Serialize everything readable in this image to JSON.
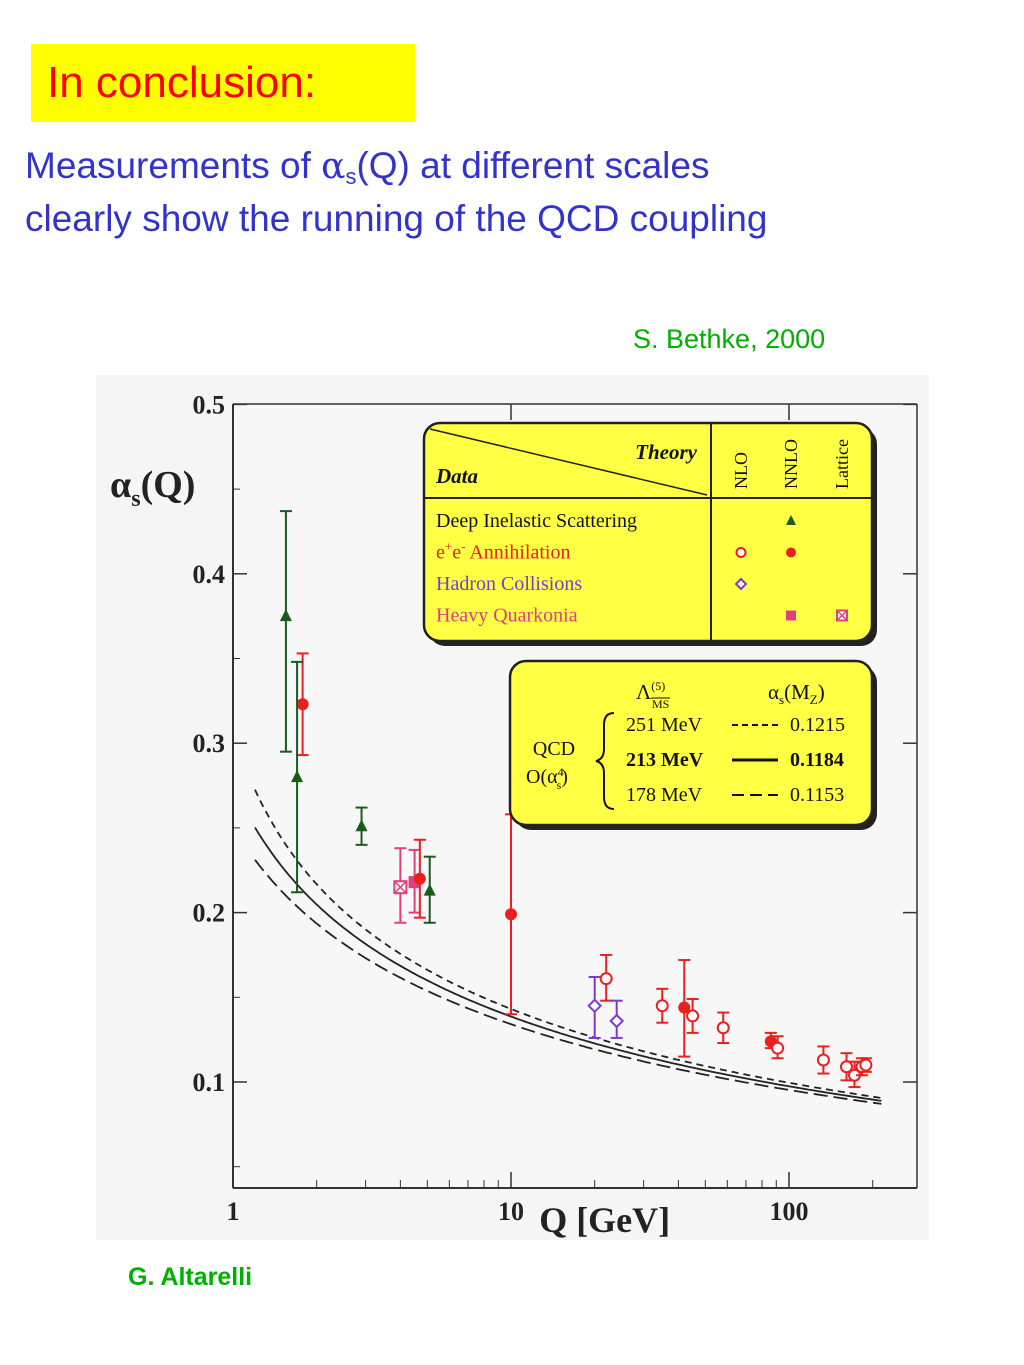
{
  "slide": {
    "title": "In conclusion:",
    "subtitle_line1_prefix": "Measurements of ",
    "subtitle_alpha": "α",
    "subtitle_sub": "s",
    "subtitle_line1_suffix": "(Q) at different scales",
    "subtitle_line2": "clearly show the running of the QCD coupling",
    "reference_top": "S. Bethke, 2000",
    "reference_bottom": "G. Altarelli"
  },
  "colors": {
    "title": "#ff0000",
    "title_bg": "#ffff00",
    "subtitle": "#3333cc",
    "reference": "#00b000",
    "dis": "#1a5a1a",
    "ee": "#e82020",
    "hadron": "#7a3cd0",
    "quarkonia": "#e0407a",
    "legend_bg": "#ffff44"
  },
  "chart_data": {
    "type": "scatter",
    "xscale": "log",
    "xlim": [
      1,
      230
    ],
    "ylim": [
      0.05,
      0.5
    ],
    "xlabel": "Q [GeV]",
    "ylabel_main": "α",
    "ylabel_sub": "s",
    "ylabel_tail": "(Q)",
    "x_ticks": [
      {
        "v": 1,
        "label": "1"
      },
      {
        "v": 10,
        "label": "10"
      },
      {
        "v": 100,
        "label": "100"
      }
    ],
    "y_ticks": [
      {
        "v": 0.1,
        "label": "0.1"
      },
      {
        "v": 0.2,
        "label": "0.2"
      },
      {
        "v": 0.3,
        "label": "0.3"
      },
      {
        "v": 0.4,
        "label": "0.4"
      },
      {
        "v": 0.5,
        "label": "0.5"
      }
    ],
    "legend_table": {
      "theory_label": "Theory",
      "data_label": "Data",
      "columns": [
        "NLO",
        "NNLO",
        "Lattice"
      ],
      "rows": [
        {
          "label": "Deep Inelastic Scattering",
          "series": "dis",
          "nlo": "",
          "nnlo": "filled-triangle",
          "lattice": ""
        },
        {
          "label_main": "e",
          "label_sup1": "+",
          "label_mid": "e",
          "label_sup2": "-",
          "label_tail": " Annihilation",
          "series": "ee",
          "nlo": "open-circle",
          "nnlo": "filled-circle",
          "lattice": ""
        },
        {
          "label": "Hadron Collisions",
          "series": "hadron",
          "nlo": "open-diamond",
          "nnlo": "",
          "lattice": ""
        },
        {
          "label": "Heavy Quarkonia",
          "series": "quarkonia",
          "nlo": "",
          "nnlo": "filled-square",
          "lattice": "crossed-square"
        }
      ]
    },
    "qcd_box": {
      "lambda_symbol": "Λ",
      "lambda_sup": "(5)",
      "lambda_sub": "MS",
      "alpha_header_main": "α",
      "alpha_header_sub": "s",
      "alpha_header_tail": "(M",
      "alpha_header_sub2": "Z",
      "alpha_header_close": ")",
      "qcd_label": "QCD",
      "order_label_main": "O(α",
      "order_label_sup": "4",
      "order_label_sub": "s",
      "order_label_close": ")",
      "rows": [
        {
          "lambda": "251 MeV",
          "alpha": "0.1215",
          "style": "dashed",
          "bold": false
        },
        {
          "lambda": "213 MeV",
          "alpha": "0.1184",
          "style": "solid",
          "bold": true
        },
        {
          "lambda": "178 MeV",
          "alpha": "0.1153",
          "style": "long-dashed",
          "bold": false
        }
      ]
    },
    "curves": [
      {
        "name": "251 MeV",
        "lambda": 0.251,
        "style": "dashed"
      },
      {
        "name": "213 MeV",
        "lambda": 0.213,
        "style": "solid"
      },
      {
        "name": "178 MeV",
        "lambda": 0.178,
        "style": "long-dashed"
      }
    ],
    "curve_x_range": [
      1.2,
      215
    ],
    "points": [
      {
        "series": "dis",
        "marker": "filled-triangle",
        "x": 1.55,
        "y": 0.375,
        "ylo": 0.295,
        "yhi": 0.437
      },
      {
        "series": "ee",
        "marker": "filled-circle",
        "x": 1.78,
        "y": 0.323,
        "ylo": 0.293,
        "yhi": 0.353
      },
      {
        "series": "dis",
        "marker": "filled-triangle",
        "x": 1.7,
        "y": 0.28,
        "ylo": 0.212,
        "yhi": 0.348
      },
      {
        "series": "dis",
        "marker": "filled-triangle",
        "x": 2.9,
        "y": 0.251,
        "ylo": 0.24,
        "yhi": 0.262
      },
      {
        "series": "quarkonia",
        "marker": "crossed-square",
        "x": 4.0,
        "y": 0.215,
        "ylo": 0.194,
        "yhi": 0.238
      },
      {
        "series": "quarkonia",
        "marker": "filled-square",
        "x": 4.5,
        "y": 0.218,
        "ylo": 0.2,
        "yhi": 0.237
      },
      {
        "series": "ee",
        "marker": "filled-circle",
        "x": 4.7,
        "y": 0.22,
        "ylo": 0.197,
        "yhi": 0.243
      },
      {
        "series": "dis",
        "marker": "filled-triangle",
        "x": 5.1,
        "y": 0.213,
        "ylo": 0.194,
        "yhi": 0.233
      },
      {
        "series": "ee",
        "marker": "filled-circle",
        "x": 10.0,
        "y": 0.199,
        "ylo": 0.14,
        "yhi": 0.258
      },
      {
        "series": "hadron",
        "marker": "open-diamond",
        "x": 20.0,
        "y": 0.145,
        "ylo": 0.126,
        "yhi": 0.162
      },
      {
        "series": "ee",
        "marker": "open-circle",
        "x": 22.0,
        "y": 0.161,
        "ylo": 0.148,
        "yhi": 0.175
      },
      {
        "series": "hadron",
        "marker": "open-diamond",
        "x": 24.0,
        "y": 0.136,
        "ylo": 0.126,
        "yhi": 0.148
      },
      {
        "series": "ee",
        "marker": "open-circle",
        "x": 35.0,
        "y": 0.145,
        "ylo": 0.135,
        "yhi": 0.155
      },
      {
        "series": "ee",
        "marker": "filled-circle",
        "x": 42.0,
        "y": 0.144,
        "ylo": 0.115,
        "yhi": 0.172
      },
      {
        "series": "ee",
        "marker": "open-circle",
        "x": 45.0,
        "y": 0.139,
        "ylo": 0.129,
        "yhi": 0.149
      },
      {
        "series": "ee",
        "marker": "open-circle",
        "x": 58.0,
        "y": 0.132,
        "ylo": 0.123,
        "yhi": 0.141
      },
      {
        "series": "ee",
        "marker": "filled-circle",
        "x": 86.0,
        "y": 0.124,
        "ylo": 0.12,
        "yhi": 0.129
      },
      {
        "series": "ee",
        "marker": "open-circle",
        "x": 91.0,
        "y": 0.12,
        "ylo": 0.114,
        "yhi": 0.127
      },
      {
        "series": "ee",
        "marker": "open-circle",
        "x": 133.0,
        "y": 0.113,
        "ylo": 0.105,
        "yhi": 0.121
      },
      {
        "series": "ee",
        "marker": "open-circle",
        "x": 161.0,
        "y": 0.109,
        "ylo": 0.101,
        "yhi": 0.117
      },
      {
        "series": "ee",
        "marker": "open-circle",
        "x": 172.0,
        "y": 0.104,
        "ylo": 0.097,
        "yhi": 0.112
      },
      {
        "series": "ee",
        "marker": "open-circle",
        "x": 183.0,
        "y": 0.109,
        "ylo": 0.104,
        "yhi": 0.114
      },
      {
        "series": "ee",
        "marker": "open-circle",
        "x": 189.0,
        "y": 0.11,
        "ylo": 0.106,
        "yhi": 0.114
      }
    ]
  }
}
